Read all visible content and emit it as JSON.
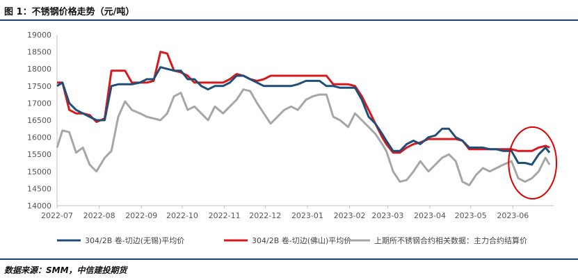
{
  "title": "图 1：不锈钢价格走势（元/吨）",
  "source": "数据来源：SMM，中信建投期货",
  "chart_data": {
    "type": "line",
    "title": "图 1：不锈钢价格走势（元/吨）",
    "xlabel": "",
    "ylabel": "",
    "ylim": [
      14000,
      19000
    ],
    "yticks": [
      14000,
      14500,
      15000,
      15500,
      16000,
      16500,
      17000,
      17500,
      18000,
      18500,
      19000
    ],
    "x_tick_labels": [
      "2022-07",
      "2022-08",
      "2022-09",
      "2022-10",
      "2022-11",
      "2022-12",
      "2023-01",
      "2023-02",
      "2023-03",
      "2023-04",
      "2023-05",
      "2023-06"
    ],
    "x": [
      "2022-07-01",
      "2022-07-05",
      "2022-07-10",
      "2022-07-15",
      "2022-07-20",
      "2022-07-25",
      "2022-07-30",
      "2022-08-05",
      "2022-08-10",
      "2022-08-15",
      "2022-08-20",
      "2022-08-25",
      "2022-08-31",
      "2022-09-05",
      "2022-09-10",
      "2022-09-15",
      "2022-09-20",
      "2022-09-25",
      "2022-09-30",
      "2022-10-05",
      "2022-10-10",
      "2022-10-15",
      "2022-10-20",
      "2022-10-25",
      "2022-10-31",
      "2022-11-05",
      "2022-11-10",
      "2022-11-15",
      "2022-11-20",
      "2022-11-25",
      "2022-11-30",
      "2022-12-05",
      "2022-12-10",
      "2022-12-15",
      "2022-12-20",
      "2022-12-25",
      "2022-12-31",
      "2023-01-05",
      "2023-01-10",
      "2023-01-15",
      "2023-01-20",
      "2023-01-25",
      "2023-01-31",
      "2023-02-05",
      "2023-02-10",
      "2023-02-15",
      "2023-02-20",
      "2023-02-25",
      "2023-02-28",
      "2023-03-05",
      "2023-03-10",
      "2023-03-15",
      "2023-03-20",
      "2023-03-25",
      "2023-03-31",
      "2023-04-05",
      "2023-04-10",
      "2023-04-15",
      "2023-04-20",
      "2023-04-25",
      "2023-04-30",
      "2023-05-05",
      "2023-05-10",
      "2023-05-15",
      "2023-05-20",
      "2023-05-25",
      "2023-05-31",
      "2023-06-05",
      "2023-06-10",
      "2023-06-15",
      "2023-06-20",
      "2023-06-25",
      "2023-06-28"
    ],
    "series": [
      {
        "name": "304/2B 卷-切边(无锡)平均价",
        "color": "#1f4e79",
        "values": [
          17500,
          17600,
          17000,
          16800,
          16700,
          16600,
          16500,
          16500,
          17500,
          17550,
          17550,
          17550,
          17600,
          17700,
          17700,
          18050,
          18000,
          17950,
          17950,
          17700,
          17700,
          17500,
          17400,
          17500,
          17500,
          17600,
          17800,
          17800,
          17700,
          17600,
          17500,
          17500,
          17500,
          17500,
          17500,
          17550,
          17650,
          17650,
          17650,
          17500,
          17500,
          17450,
          17450,
          17450,
          17100,
          16600,
          16400,
          16100,
          15900,
          15600,
          15600,
          15800,
          15900,
          15800,
          16000,
          16050,
          16250,
          16250,
          16000,
          15900,
          15700,
          15700,
          15700,
          15650,
          15650,
          15600,
          15600,
          15250,
          15250,
          15200,
          15500,
          15700,
          15550
        ]
      },
      {
        "name": "304/2B 卷-切边(佛山)平均价",
        "color": "#d7191c",
        "values": [
          17600,
          17600,
          16800,
          16700,
          16700,
          16650,
          16450,
          16550,
          17950,
          17950,
          17950,
          17600,
          17600,
          17600,
          17650,
          18500,
          18450,
          17950,
          17900,
          17800,
          17600,
          17600,
          17600,
          17600,
          17600,
          17700,
          17850,
          17800,
          17700,
          17650,
          17700,
          17800,
          17800,
          17800,
          17800,
          17800,
          17800,
          17800,
          17800,
          17800,
          17550,
          17550,
          17550,
          17500,
          17200,
          16800,
          16400,
          16000,
          15800,
          15550,
          15550,
          15700,
          15800,
          15850,
          15950,
          15950,
          15950,
          15950,
          15950,
          15900,
          15650,
          15650,
          15650,
          15650,
          15650,
          15650,
          15650,
          15600,
          15600,
          15600,
          15700,
          15750,
          15700
        ]
      },
      {
        "name": "上期所不锈钢合约相关数据：主力合约结算价",
        "color": "#a6a6a6",
        "values": [
          15700,
          16200,
          16150,
          15550,
          15700,
          15200,
          15000,
          15400,
          15600,
          16600,
          17050,
          16800,
          16700,
          16600,
          16550,
          16500,
          16700,
          17200,
          17300,
          16800,
          16900,
          16700,
          16500,
          16900,
          16700,
          16900,
          17100,
          17400,
          17350,
          17000,
          16700,
          16400,
          16600,
          16800,
          16900,
          16800,
          17100,
          17200,
          17250,
          17250,
          16600,
          16500,
          16300,
          16700,
          16500,
          16300,
          16100,
          15800,
          15600,
          15000,
          14700,
          14750,
          15000,
          15300,
          15000,
          15200,
          15400,
          15500,
          15300,
          14700,
          14600,
          14900,
          15100,
          15000,
          15100,
          15200,
          15300,
          14800,
          14700,
          14800,
          15000,
          15400,
          15200
        ]
      }
    ],
    "grid": false,
    "legend_placement": "bottom",
    "annotations": [
      {
        "type": "ellipse",
        "color": "#e00000",
        "x_range": [
          "2023-06-01",
          "2023-06-30"
        ],
        "y_range": [
          14200,
          16300
        ]
      }
    ]
  }
}
